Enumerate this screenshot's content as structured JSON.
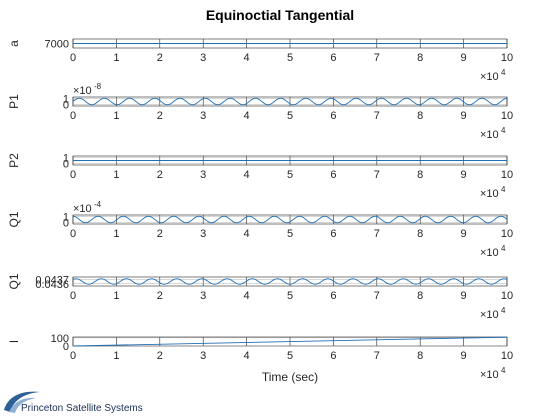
{
  "title": "Equinoctial Tangential",
  "xlabel": "Time (sec)",
  "logo_text": "Princeton Satellite Systems",
  "colors": {
    "line": "#1f6fb5",
    "axis": "#262626",
    "grid": "#262626",
    "logo_swoosh": "#2e5f96"
  },
  "chart_data": [
    {
      "type": "line",
      "ylabel": "a",
      "xlim": [
        0,
        100000
      ],
      "ylim": [
        6999.9,
        7000.1
      ],
      "x_exponent_label": "4",
      "x_ticks": [
        0,
        10000,
        20000,
        30000,
        40000,
        50000,
        60000,
        70000,
        80000,
        90000,
        100000
      ],
      "x_tick_labels": [
        "0",
        "1",
        "2",
        "3",
        "4",
        "5",
        "6",
        "7",
        "8",
        "9",
        "10"
      ],
      "y_ticks": [
        7000
      ],
      "y_tick_labels": [
        "7000"
      ],
      "y_exponent_label": "",
      "series": [
        {
          "kind": "constant",
          "value": 7000
        }
      ]
    },
    {
      "type": "line",
      "ylabel": "P1",
      "xlim": [
        0,
        100000
      ],
      "ylim": [
        -0.2,
        1.2
      ],
      "x_exponent_label": "4",
      "x_ticks": [
        0,
        10000,
        20000,
        30000,
        40000,
        50000,
        60000,
        70000,
        80000,
        90000,
        100000
      ],
      "x_tick_labels": [
        "0",
        "1",
        "2",
        "3",
        "4",
        "5",
        "6",
        "7",
        "8",
        "9",
        "10"
      ],
      "y_ticks": [
        0,
        1
      ],
      "y_tick_labels": [
        "0",
        "1"
      ],
      "y_exponent_label": "-8",
      "series": [
        {
          "kind": "sine",
          "offset": 0.5,
          "amplitude": 0.5,
          "period": 5800,
          "phase": 0
        }
      ]
    },
    {
      "type": "line",
      "ylabel": "P2",
      "xlim": [
        0,
        100000
      ],
      "ylim": [
        -0.3,
        1.3
      ],
      "x_exponent_label": "4",
      "x_ticks": [
        0,
        10000,
        20000,
        30000,
        40000,
        50000,
        60000,
        70000,
        80000,
        90000,
        100000
      ],
      "x_tick_labels": [
        "0",
        "1",
        "2",
        "3",
        "4",
        "5",
        "6",
        "7",
        "8",
        "9",
        "10"
      ],
      "y_ticks": [
        0,
        1
      ],
      "y_tick_labels": [
        "0",
        "1"
      ],
      "y_exponent_label": "",
      "series": [
        {
          "kind": "constant",
          "value": 0.5
        }
      ]
    },
    {
      "type": "line",
      "ylabel": "Q1",
      "xlim": [
        0,
        100000
      ],
      "ylim": [
        -0.2,
        1.2
      ],
      "x_exponent_label": "4",
      "x_ticks": [
        0,
        10000,
        20000,
        30000,
        40000,
        50000,
        60000,
        70000,
        80000,
        90000,
        100000
      ],
      "x_tick_labels": [
        "0",
        "1",
        "2",
        "3",
        "4",
        "5",
        "6",
        "7",
        "8",
        "9",
        "10"
      ],
      "y_ticks": [
        0,
        1
      ],
      "y_tick_labels": [
        "0",
        "1"
      ],
      "y_exponent_label": "-4",
      "series": [
        {
          "kind": "sine",
          "offset": 0.5,
          "amplitude": 0.5,
          "period": 5800,
          "phase": 1.57
        }
      ]
    },
    {
      "type": "line",
      "ylabel": "Q1",
      "xlim": [
        0,
        100000
      ],
      "ylim": [
        0.04355,
        0.04375
      ],
      "x_exponent_label": "4",
      "x_ticks": [
        0,
        10000,
        20000,
        30000,
        40000,
        50000,
        60000,
        70000,
        80000,
        90000,
        100000
      ],
      "x_tick_labels": [
        "0",
        "1",
        "2",
        "3",
        "4",
        "5",
        "6",
        "7",
        "8",
        "9",
        "10"
      ],
      "y_ticks": [
        0.0436,
        0.0437
      ],
      "y_tick_labels": [
        "0.0436",
        "0.0437"
      ],
      "y_exponent_label": "",
      "series": [
        {
          "kind": "sine",
          "offset": 0.04365,
          "amplitude": 6e-05,
          "period": 5800,
          "phase": 0.8
        }
      ]
    },
    {
      "type": "line",
      "ylabel": "l",
      "xlim": [
        0,
        100000
      ],
      "ylim": [
        0,
        110
      ],
      "x_exponent_label": "4",
      "x_ticks": [
        0,
        10000,
        20000,
        30000,
        40000,
        50000,
        60000,
        70000,
        80000,
        90000,
        100000
      ],
      "x_tick_labels": [
        "0",
        "1",
        "2",
        "3",
        "4",
        "5",
        "6",
        "7",
        "8",
        "9",
        "10"
      ],
      "y_ticks": [
        0,
        100
      ],
      "y_tick_labels": [
        "0",
        "100"
      ],
      "y_exponent_label": "",
      "series": [
        {
          "kind": "linear",
          "start": 0,
          "end": 108
        }
      ]
    }
  ]
}
